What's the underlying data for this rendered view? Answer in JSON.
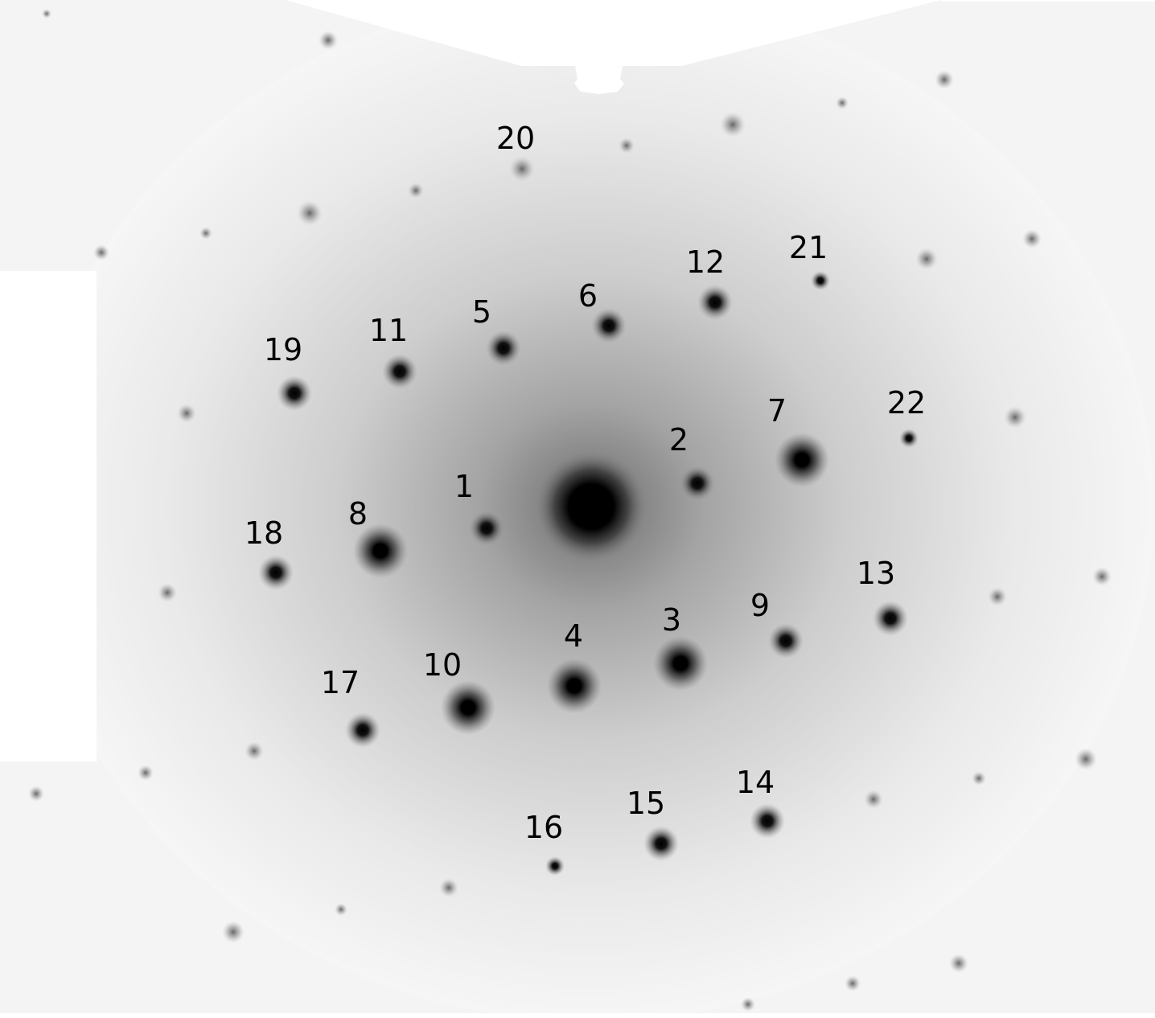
{
  "image": {
    "description_colors": {
      "background": "#ffffff",
      "halo": "#9a9a9a",
      "spot": "#000000",
      "label": "#000000"
    },
    "spot_labels": [
      "1",
      "2",
      "3",
      "4",
      "5",
      "6",
      "7",
      "8",
      "9",
      "10",
      "11",
      "12",
      "13",
      "14",
      "15",
      "16",
      "17",
      "18",
      "19",
      "20",
      "21",
      "22"
    ]
  }
}
